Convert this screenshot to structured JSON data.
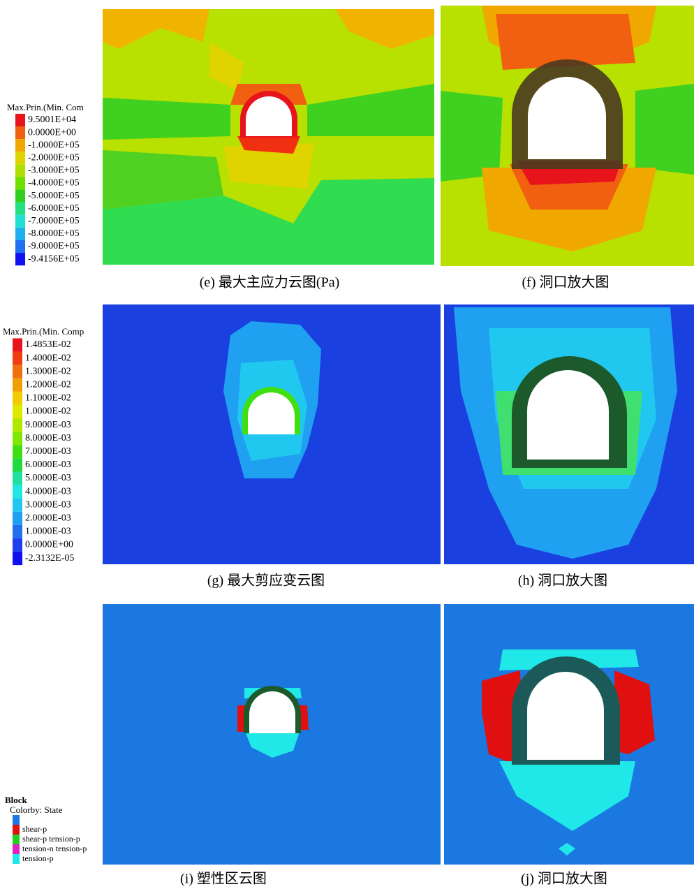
{
  "panels": [
    {
      "legend": {
        "title": "Max.Prin.(Min. Com",
        "items": [
          {
            "label": "9.5001E+04",
            "color": "#e8141c"
          },
          {
            "label": "0.0000E+00",
            "color": "#f06010"
          },
          {
            "label": "-1.0000E+05",
            "color": "#f0a800"
          },
          {
            "label": "-2.0000E+05",
            "color": "#e0d400"
          },
          {
            "label": "-3.0000E+05",
            "color": "#b0e000"
          },
          {
            "label": "-4.0000E+05",
            "color": "#70e000"
          },
          {
            "label": "-5.0000E+05",
            "color": "#30d020"
          },
          {
            "label": "-6.0000E+05",
            "color": "#20e080"
          },
          {
            "label": "-7.0000E+05",
            "color": "#20e0d0"
          },
          {
            "label": "-8.0000E+05",
            "color": "#20b0f0"
          },
          {
            "label": "-9.0000E+05",
            "color": "#2070f0"
          },
          {
            "label": "-9.4156E+05",
            "color": "#1010f0"
          }
        ]
      },
      "caption_left": "(e)  最大主应力云图(Pa)",
      "caption_right": "(f)  洞口放大图"
    },
    {
      "legend": {
        "title": "Max.Prin.(Min. Comp",
        "items": [
          {
            "label": "1.4853E-02",
            "color": "#e8141c"
          },
          {
            "label": "1.4000E-02",
            "color": "#f03c10"
          },
          {
            "label": "1.3000E-02",
            "color": "#f07010"
          },
          {
            "label": "1.2000E-02",
            "color": "#f0a000"
          },
          {
            "label": "1.1000E-02",
            "color": "#f0cc00"
          },
          {
            "label": "1.0000E-02",
            "color": "#e0e800"
          },
          {
            "label": "9.0000E-03",
            "color": "#b0e800"
          },
          {
            "label": "8.0000E-03",
            "color": "#80e800"
          },
          {
            "label": "7.0000E-03",
            "color": "#40e010"
          },
          {
            "label": "6.0000E-03",
            "color": "#20d840"
          },
          {
            "label": "5.0000E-03",
            "color": "#20e0a0"
          },
          {
            "label": "4.0000E-03",
            "color": "#20e8e0"
          },
          {
            "label": "3.0000E-03",
            "color": "#20c8f0"
          },
          {
            "label": "2.0000E-03",
            "color": "#20a0f0"
          },
          {
            "label": "1.0000E-03",
            "color": "#2070f0"
          },
          {
            "label": "0.0000E+00",
            "color": "#2040f0"
          },
          {
            "label": "-2.3132E-05",
            "color": "#1010f0"
          }
        ]
      },
      "caption_left": "(g)  最大剪应变云图",
      "caption_right": "(h)  洞口放大图"
    },
    {
      "legend": {
        "title": "Block",
        "subtitle": "Colorby: State",
        "items": [
          {
            "label": null,
            "color": "#1a78e0"
          },
          {
            "label": "shear-p",
            "color": "#e01010"
          },
          {
            "label": "shear-p tension-p",
            "color": "#20d020"
          },
          {
            "label": "tension-n tension-p",
            "color": "#e020c0"
          },
          {
            "label": "tension-p",
            "color": "#20e8e8"
          }
        ]
      },
      "caption_left": "(i)  塑性区云图",
      "caption_right": "(j)  洞口放大图"
    }
  ]
}
